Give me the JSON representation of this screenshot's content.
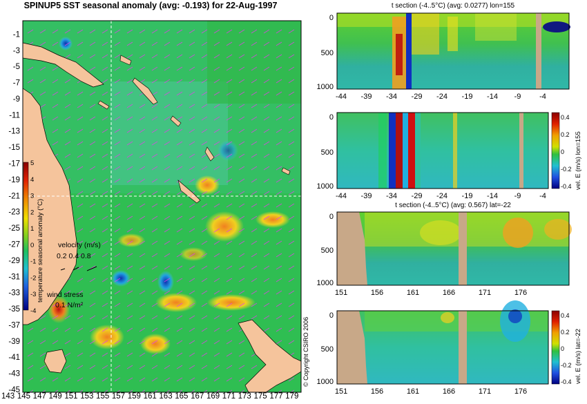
{
  "main_map": {
    "title": "SPINUP5 SST seasonal anomaly (avg: -0.193) for 22-Aug-1997",
    "lat_ticks": [
      -1,
      -3,
      -5,
      -7,
      -9,
      -11,
      -13,
      -15,
      -17,
      -19,
      -21,
      -23,
      -25,
      -27,
      -29,
      -31,
      -33,
      -35,
      -37,
      -39,
      -41,
      -43,
      -45
    ],
    "lon_ticks": [
      143,
      145,
      147,
      149,
      151,
      153,
      155,
      157,
      159,
      161,
      163,
      165,
      167,
      169,
      171,
      173,
      175,
      177,
      179
    ],
    "colorbar": {
      "label": "temperature seasonal anomaly (°C)",
      "ticks": [
        "5",
        "4",
        "3",
        "2",
        "1",
        "0",
        "-1",
        "-2",
        "-3",
        "-4"
      ]
    },
    "velocity_legend": {
      "label": "velocity (m/s)",
      "scale": "0.2 0.4 0.8"
    },
    "wind_legend": {
      "label": "wind stress",
      "scale": "0.1 N/m²"
    },
    "crosshair": {
      "lon": 155,
      "lat": -22
    },
    "colors": {
      "land": "#f5c49c",
      "water": "#2fbe52",
      "vector": "#e040e8"
    }
  },
  "panels": [
    {
      "title": "t section (-4..5°C) (avg: 0.0277) lon=155",
      "y_ticks": [
        "0",
        "500",
        "1000"
      ],
      "x_ticks": [
        "-44",
        "-39",
        "-34",
        "-29",
        "-24",
        "-19",
        "-14",
        "-9",
        "-4"
      ],
      "colorbar": null
    },
    {
      "title": "",
      "y_ticks": [
        "0",
        "500",
        "1000"
      ],
      "x_ticks": [
        "-44",
        "-39",
        "-34",
        "-29",
        "-24",
        "-19",
        "-14",
        "-9",
        "-4"
      ],
      "colorbar": {
        "label": "vel. E (m/s) lon=155",
        "ticks": [
          "0.4",
          "0.2",
          "0",
          "-0.2",
          "-0.4"
        ]
      }
    },
    {
      "title": "t section (-4..5°C) (avg: 0.567) lat=-22",
      "y_ticks": [
        "0",
        "500",
        "1000"
      ],
      "x_ticks": [
        "151",
        "156",
        "161",
        "166",
        "171",
        "176"
      ],
      "colorbar": null
    },
    {
      "title": "",
      "y_ticks": [
        "0",
        "500",
        "1000"
      ],
      "x_ticks": [
        "151",
        "156",
        "161",
        "166",
        "171",
        "176"
      ],
      "colorbar": {
        "label": "vel. E (m/s) lat=-22",
        "ticks": [
          "0.4",
          "0.2",
          "0",
          "-0.2",
          "-0.4"
        ]
      }
    }
  ],
  "copyright": "© Copyright CSIRO 2006"
}
